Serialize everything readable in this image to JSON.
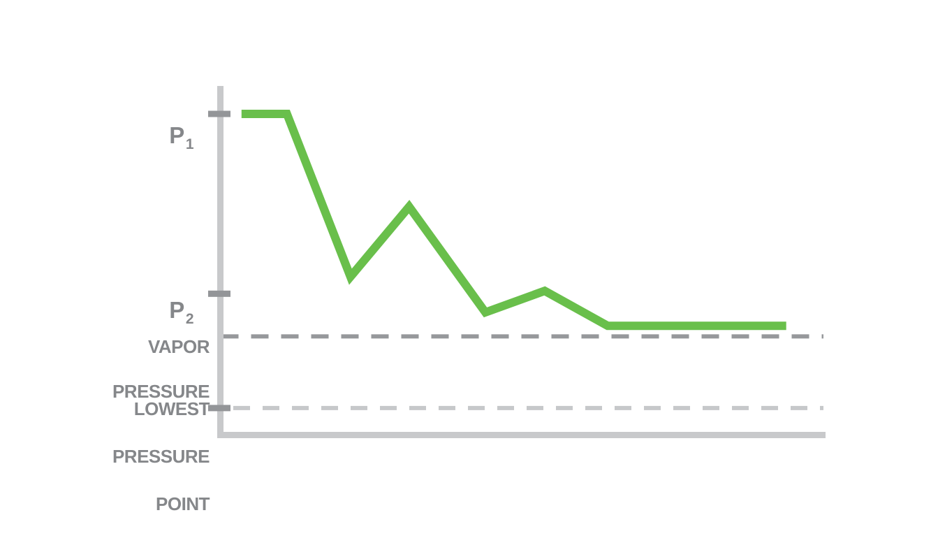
{
  "page": {
    "background_color": "#ffffff"
  },
  "colors": {
    "series_green": "#69bf4b",
    "axis_gray": "#c8c9cb",
    "tick_gray": "#939598",
    "dark_dash_gray": "#96989b",
    "light_dash_gray": "#c6c8ca",
    "label_text_gray": "#85878a"
  },
  "labels": {
    "p1": {
      "main": "P",
      "sub": "1"
    },
    "p2": {
      "main": "P",
      "sub": "2"
    },
    "vapor": {
      "line1": "VAPOR",
      "line2": "PRESSURE"
    },
    "lowest": {
      "line1": "LOWEST",
      "line2": "PRESSURE",
      "line3": "POINT"
    }
  },
  "chart_data": {
    "type": "line",
    "title": "",
    "xlabel": "",
    "ylabel": "",
    "grid": false,
    "legend": false,
    "x_range": [
      0,
      100
    ],
    "y_range": [
      0,
      108.7
    ],
    "y_axis_labels": [
      {
        "id": "p1",
        "text": "P1",
        "level": 100,
        "tick": true
      },
      {
        "id": "p2",
        "text": "P2",
        "level": 44,
        "tick": true
      },
      {
        "id": "vapor-pressure",
        "text": "VAPOR PRESSURE",
        "level": 30.7,
        "tick": false
      },
      {
        "id": "lowest-pressure-point",
        "text": "LOWEST PRESSURE POINT",
        "level": 8.4,
        "tick": true
      }
    ],
    "reference_lines": [
      {
        "id": "vapor-pressure-line",
        "level": 30.7,
        "style": "dashed",
        "weight": "dark",
        "color": "#96989b"
      },
      {
        "id": "lowest-pressure-point-line",
        "level": 8.4,
        "style": "dashed",
        "weight": "light",
        "color": "#c6c8ca"
      }
    ],
    "series": [
      {
        "name": "pressure-profile",
        "color": "#69bf4b",
        "points": [
          [
            3.5,
            100
          ],
          [
            11.0,
            100
          ],
          [
            21.5,
            49.3
          ],
          [
            31.2,
            71.1
          ],
          [
            43.8,
            38.2
          ],
          [
            53.6,
            44.9
          ],
          [
            64.0,
            34.0
          ],
          [
            93.5,
            34.0
          ]
        ]
      }
    ]
  }
}
